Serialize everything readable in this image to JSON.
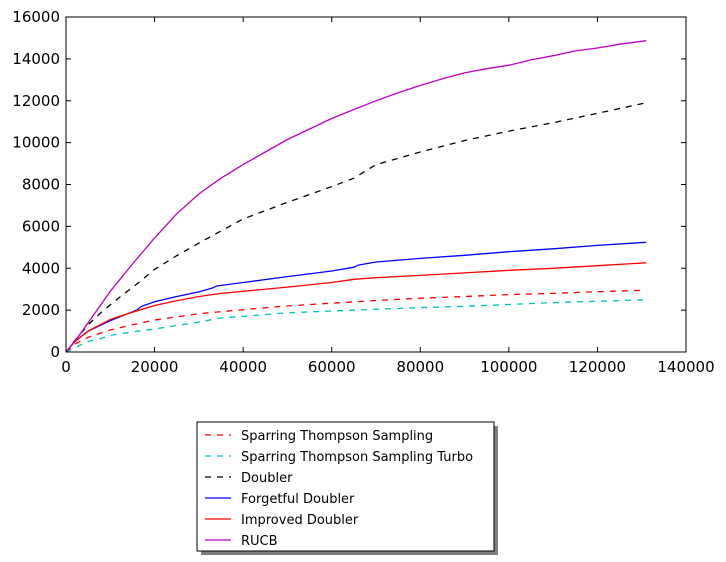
{
  "chart_data": {
    "type": "line",
    "title": "",
    "xlabel": "",
    "ylabel": "",
    "xlim": [
      0,
      140000
    ],
    "ylim": [
      0,
      16000
    ],
    "xticks": [
      0,
      20000,
      40000,
      60000,
      80000,
      100000,
      120000,
      140000
    ],
    "xtick_labels": [
      "0",
      "20000",
      "40000",
      "60000",
      "80000",
      "100000",
      "120000",
      "140000"
    ],
    "yticks": [
      0,
      2000,
      4000,
      6000,
      8000,
      10000,
      12000,
      14000,
      16000
    ],
    "ytick_labels": [
      "0",
      "2000",
      "4000",
      "6000",
      "8000",
      "10000",
      "12000",
      "14000",
      "16000"
    ],
    "grid": false,
    "legend_position": "below plot, center",
    "series": [
      {
        "name": "Sparring Thompson Sampling",
        "color": "#ff0000",
        "dash": "dashed",
        "points": [
          [
            0,
            0
          ],
          [
            2000,
            380
          ],
          [
            5000,
            700
          ],
          [
            10000,
            1050
          ],
          [
            15000,
            1300
          ],
          [
            20000,
            1530
          ],
          [
            30000,
            1830
          ],
          [
            40000,
            2020
          ],
          [
            50000,
            2200
          ],
          [
            60000,
            2330
          ],
          [
            70000,
            2460
          ],
          [
            80000,
            2570
          ],
          [
            90000,
            2650
          ],
          [
            100000,
            2740
          ],
          [
            110000,
            2800
          ],
          [
            120000,
            2880
          ],
          [
            131000,
            2950
          ]
        ]
      },
      {
        "name": "Sparring Thompson Sampling Turbo",
        "color": "#00bfbf",
        "dash": "dashed",
        "points": [
          [
            0,
            0
          ],
          [
            3000,
            310
          ],
          [
            5000,
            500
          ],
          [
            8000,
            650
          ],
          [
            10000,
            800
          ],
          [
            15000,
            960
          ],
          [
            20000,
            1100
          ],
          [
            30000,
            1430
          ],
          [
            35000,
            1630
          ],
          [
            40000,
            1700
          ],
          [
            50000,
            1870
          ],
          [
            60000,
            1960
          ],
          [
            70000,
            2040
          ],
          [
            80000,
            2120
          ],
          [
            90000,
            2180
          ],
          [
            100000,
            2270
          ],
          [
            110000,
            2360
          ],
          [
            120000,
            2420
          ],
          [
            131000,
            2500
          ]
        ]
      },
      {
        "name": "Doubler",
        "color": "#000000",
        "dash": "dashed",
        "points": [
          [
            0,
            0
          ],
          [
            2000,
            550
          ],
          [
            5000,
            1300
          ],
          [
            8000,
            1900
          ],
          [
            12000,
            2600
          ],
          [
            16000,
            3250
          ],
          [
            20000,
            3950
          ],
          [
            25000,
            4600
          ],
          [
            30000,
            5200
          ],
          [
            33000,
            5550
          ],
          [
            40000,
            6350
          ],
          [
            50000,
            7150
          ],
          [
            60000,
            7900
          ],
          [
            65000,
            8300
          ],
          [
            70000,
            8950
          ],
          [
            80000,
            9550
          ],
          [
            90000,
            10100
          ],
          [
            100000,
            10550
          ],
          [
            110000,
            10950
          ],
          [
            120000,
            11400
          ],
          [
            131000,
            11900
          ]
        ]
      },
      {
        "name": "Forgetful Doubler",
        "color": "#0000ff",
        "dash": "solid",
        "points": [
          [
            0,
            0
          ],
          [
            2000,
            500
          ],
          [
            5000,
            1000
          ],
          [
            10000,
            1500
          ],
          [
            16000,
            2000
          ],
          [
            17000,
            2180
          ],
          [
            20000,
            2400
          ],
          [
            25000,
            2650
          ],
          [
            30000,
            2870
          ],
          [
            33000,
            3050
          ],
          [
            34000,
            3150
          ],
          [
            40000,
            3320
          ],
          [
            50000,
            3600
          ],
          [
            60000,
            3870
          ],
          [
            65000,
            4050
          ],
          [
            66000,
            4150
          ],
          [
            70000,
            4300
          ],
          [
            80000,
            4470
          ],
          [
            90000,
            4620
          ],
          [
            100000,
            4790
          ],
          [
            110000,
            4930
          ],
          [
            120000,
            5090
          ],
          [
            131000,
            5240
          ]
        ]
      },
      {
        "name": "Improved Doubler",
        "color": "#ff0000",
        "dash": "solid",
        "points": [
          [
            0,
            0
          ],
          [
            2000,
            500
          ],
          [
            5000,
            1000
          ],
          [
            10000,
            1550
          ],
          [
            15000,
            1900
          ],
          [
            20000,
            2220
          ],
          [
            25000,
            2450
          ],
          [
            30000,
            2650
          ],
          [
            35000,
            2800
          ],
          [
            40000,
            2900
          ],
          [
            50000,
            3100
          ],
          [
            60000,
            3320
          ],
          [
            65000,
            3470
          ],
          [
            70000,
            3550
          ],
          [
            80000,
            3660
          ],
          [
            90000,
            3780
          ],
          [
            100000,
            3900
          ],
          [
            110000,
            4000
          ],
          [
            120000,
            4120
          ],
          [
            131000,
            4260
          ]
        ]
      },
      {
        "name": "RUCB",
        "color": "#bf00bf",
        "dash": "solid",
        "points": [
          [
            0,
            0
          ],
          [
            3000,
            800
          ],
          [
            6000,
            1700
          ],
          [
            10000,
            2900
          ],
          [
            15000,
            4200
          ],
          [
            20000,
            5450
          ],
          [
            25000,
            6600
          ],
          [
            30000,
            7550
          ],
          [
            35000,
            8300
          ],
          [
            40000,
            8950
          ],
          [
            45000,
            9550
          ],
          [
            50000,
            10150
          ],
          [
            55000,
            10650
          ],
          [
            60000,
            11150
          ],
          [
            65000,
            11580
          ],
          [
            70000,
            12000
          ],
          [
            75000,
            12380
          ],
          [
            80000,
            12730
          ],
          [
            85000,
            13050
          ],
          [
            90000,
            13330
          ],
          [
            95000,
            13530
          ],
          [
            100000,
            13700
          ],
          [
            105000,
            13950
          ],
          [
            110000,
            14150
          ],
          [
            115000,
            14380
          ],
          [
            120000,
            14520
          ],
          [
            125000,
            14700
          ],
          [
            131000,
            14870
          ]
        ]
      }
    ]
  }
}
